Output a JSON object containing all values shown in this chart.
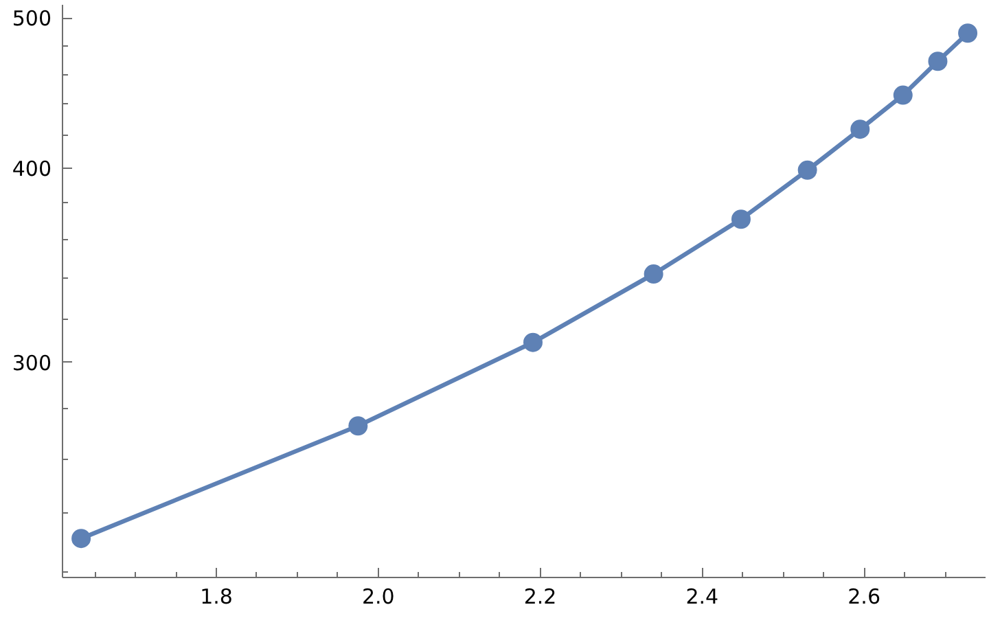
{
  "chart_data": {
    "type": "line",
    "log": "y",
    "grid": false,
    "marker": "circle",
    "line_style": "solid",
    "x": [
      1.633,
      1.975,
      2.191,
      2.34,
      2.448,
      2.53,
      2.595,
      2.648,
      2.691,
      2.728
    ],
    "series": [
      {
        "color": "#5e81b5",
        "values": [
          231,
          273,
          309,
          342,
          371,
          399,
          424,
          446,
          469,
          489
        ]
      }
    ],
    "xlim": [
      1.61,
      2.75
    ],
    "ylim": [
      218,
      510
    ],
    "xticks": [
      {
        "value": 1.65,
        "label": null
      },
      {
        "value": 1.7,
        "label": null
      },
      {
        "value": 1.75,
        "label": null
      },
      {
        "value": 1.8,
        "label": "1.8"
      },
      {
        "value": 1.85,
        "label": null
      },
      {
        "value": 1.9,
        "label": null
      },
      {
        "value": 1.95,
        "label": null
      },
      {
        "value": 2.0,
        "label": "2.0"
      },
      {
        "value": 2.05,
        "label": null
      },
      {
        "value": 2.1,
        "label": null
      },
      {
        "value": 2.15,
        "label": null
      },
      {
        "value": 2.2,
        "label": "2.2"
      },
      {
        "value": 2.25,
        "label": null
      },
      {
        "value": 2.3,
        "label": null
      },
      {
        "value": 2.35,
        "label": null
      },
      {
        "value": 2.4,
        "label": "2.4"
      },
      {
        "value": 2.45,
        "label": null
      },
      {
        "value": 2.5,
        "label": null
      },
      {
        "value": 2.55,
        "label": null
      },
      {
        "value": 2.6,
        "label": "2.6"
      },
      {
        "value": 2.65,
        "label": null
      },
      {
        "value": 2.7,
        "label": null
      }
    ],
    "yticks": [
      {
        "value": 220,
        "label": null
      },
      {
        "value": 240,
        "label": null
      },
      {
        "value": 260,
        "label": null
      },
      {
        "value": 280,
        "label": null
      },
      300,
      {
        "value": 320,
        "label": null
      },
      {
        "value": 340,
        "label": null
      },
      {
        "value": 360,
        "label": null
      },
      {
        "value": 380,
        "label": null
      },
      400,
      {
        "value": 420,
        "label": null
      },
      {
        "value": 440,
        "label": null
      },
      {
        "value": 460,
        "label": null
      },
      {
        "value": 480,
        "label": null
      },
      500
    ]
  }
}
